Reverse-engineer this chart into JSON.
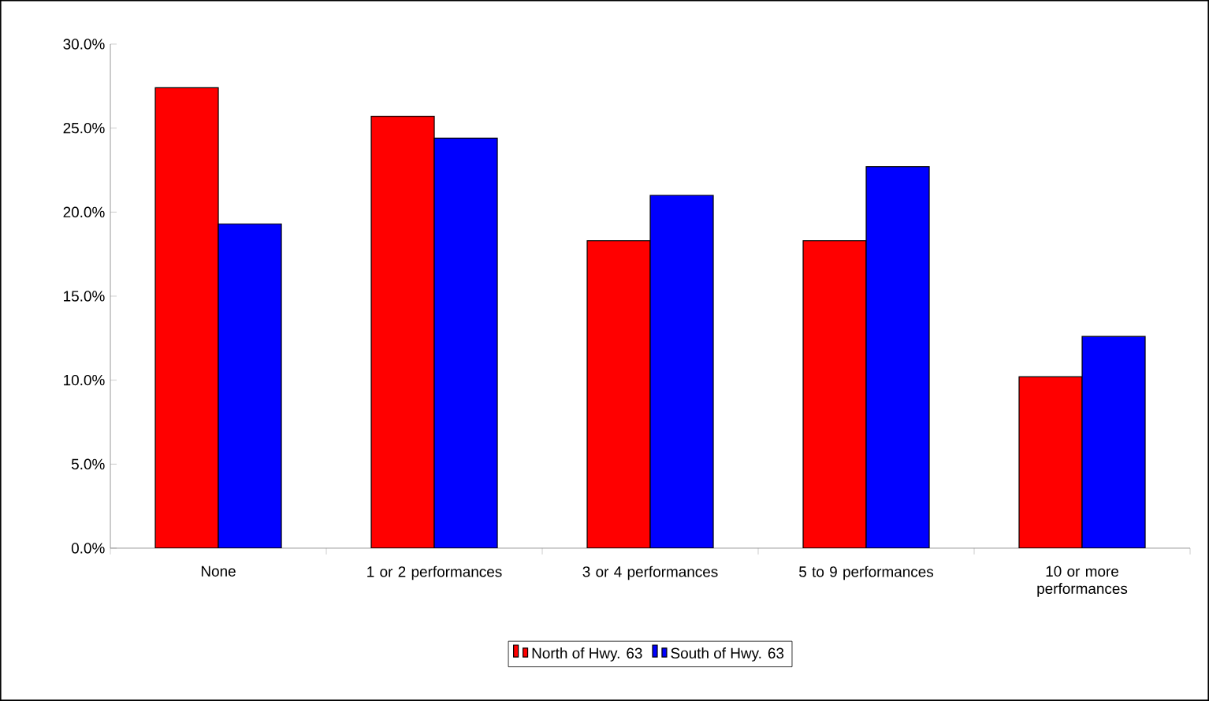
{
  "chart_data": {
    "type": "bar",
    "categories": [
      "None",
      "1 or 2 performances",
      "3 or 4 performances",
      "5 to 9 performances",
      "10 or more performances"
    ],
    "series": [
      {
        "name": "North of Hwy. 63",
        "color": "#ff0000",
        "values": [
          27.4,
          25.7,
          18.3,
          18.3,
          10.2
        ]
      },
      {
        "name": "South of Hwy. 63",
        "color": "#0000ff",
        "values": [
          19.3,
          24.4,
          21.0,
          22.7,
          12.6
        ]
      }
    ],
    "ylim": [
      0,
      30
    ],
    "yticks": [
      {
        "value": 0,
        "label": "0.0%"
      },
      {
        "value": 5,
        "label": "5.0%"
      },
      {
        "value": 10,
        "label": "10.0%"
      },
      {
        "value": 15,
        "label": "15.0%"
      },
      {
        "value": 20,
        "label": "20.0%"
      },
      {
        "value": 25,
        "label": "25.0%"
      },
      {
        "value": 30,
        "label": "30.0%"
      }
    ],
    "grid": false,
    "legend": "bottom"
  }
}
